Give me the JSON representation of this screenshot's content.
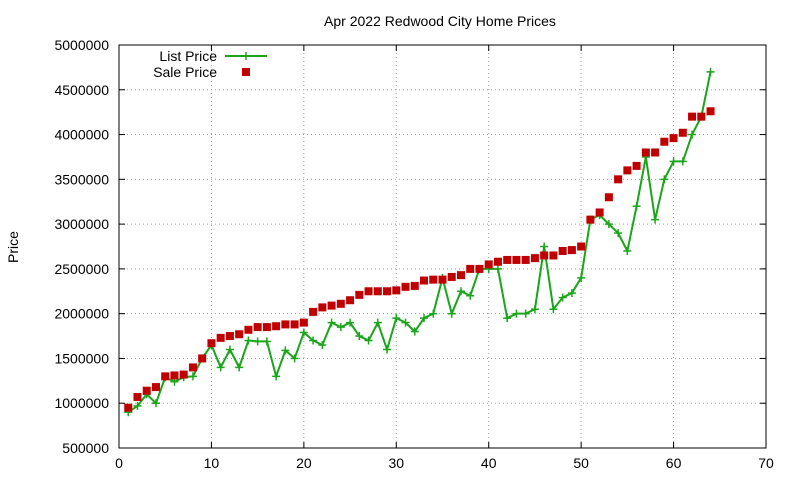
{
  "chart_data": {
    "type": "line",
    "title": "Apr 2022 Redwood City Home Prices",
    "xlabel": "",
    "ylabel": "Price",
    "xlim": [
      0,
      70
    ],
    "ylim": [
      500000,
      5000000
    ],
    "x_ticks": [
      0,
      10,
      20,
      30,
      40,
      50,
      60,
      70
    ],
    "y_ticks": [
      500000,
      1000000,
      1500000,
      2000000,
      2500000,
      3000000,
      3500000,
      4000000,
      4500000,
      5000000
    ],
    "grid": true,
    "legend_position": "top-left",
    "series": [
      {
        "name": "List Price",
        "style": "line-plus",
        "color": "#1aa51a",
        "x": [
          1,
          2,
          3,
          4,
          5,
          6,
          7,
          8,
          9,
          10,
          11,
          12,
          13,
          14,
          15,
          16,
          17,
          18,
          19,
          20,
          21,
          22,
          23,
          24,
          25,
          26,
          27,
          28,
          29,
          30,
          31,
          32,
          33,
          34,
          35,
          36,
          37,
          38,
          39,
          40,
          41,
          42,
          43,
          44,
          45,
          46,
          47,
          48,
          49,
          50,
          51,
          52,
          53,
          54,
          55,
          56,
          57,
          58,
          59,
          60,
          61,
          62,
          63,
          64
        ],
        "values": [
          900000,
          970000,
          1100000,
          1000000,
          1290000,
          1240000,
          1290000,
          1300000,
          1500000,
          1650000,
          1400000,
          1600000,
          1400000,
          1700000,
          1690000,
          1690000,
          1300000,
          1590000,
          1500000,
          1790000,
          1700000,
          1650000,
          1900000,
          1850000,
          1900000,
          1750000,
          1700000,
          1900000,
          1600000,
          1950000,
          1900000,
          1800000,
          1950000,
          2000000,
          2400000,
          2000000,
          2250000,
          2200000,
          2500000,
          2500000,
          2500000,
          1950000,
          2000000,
          2000000,
          2050000,
          2750000,
          2050000,
          2180000,
          2230000,
          2400000,
          3050000,
          3100000,
          3000000,
          2900000,
          2700000,
          3200000,
          3750000,
          3050000,
          3500000,
          3700000,
          3700000,
          4000000,
          4200000,
          4700000
        ]
      },
      {
        "name": "Sale Price",
        "style": "square-points",
        "color": "#c00000",
        "x": [
          1,
          2,
          3,
          4,
          5,
          6,
          7,
          8,
          9,
          10,
          11,
          12,
          13,
          14,
          15,
          16,
          17,
          18,
          19,
          20,
          21,
          22,
          23,
          24,
          25,
          26,
          27,
          28,
          29,
          30,
          31,
          32,
          33,
          34,
          35,
          36,
          37,
          38,
          39,
          40,
          41,
          42,
          43,
          44,
          45,
          46,
          47,
          48,
          49,
          50,
          51,
          52,
          53,
          54,
          55,
          56,
          57,
          58,
          59,
          60,
          61,
          62,
          63,
          64
        ],
        "values": [
          950000,
          1070000,
          1140000,
          1180000,
          1300000,
          1310000,
          1320000,
          1400000,
          1500000,
          1670000,
          1730000,
          1750000,
          1770000,
          1820000,
          1850000,
          1850000,
          1860000,
          1880000,
          1880000,
          1900000,
          2020000,
          2070000,
          2090000,
          2110000,
          2150000,
          2210000,
          2250000,
          2250000,
          2250000,
          2260000,
          2300000,
          2310000,
          2370000,
          2380000,
          2380000,
          2410000,
          2430000,
          2500000,
          2500000,
          2550000,
          2580000,
          2600000,
          2600000,
          2600000,
          2620000,
          2650000,
          2650000,
          2700000,
          2710000,
          2750000,
          3050000,
          3130000,
          3300000,
          3500000,
          3600000,
          3650000,
          3800000,
          3800000,
          3920000,
          3960000,
          4020000,
          4200000,
          4200000,
          4260000
        ]
      }
    ]
  }
}
